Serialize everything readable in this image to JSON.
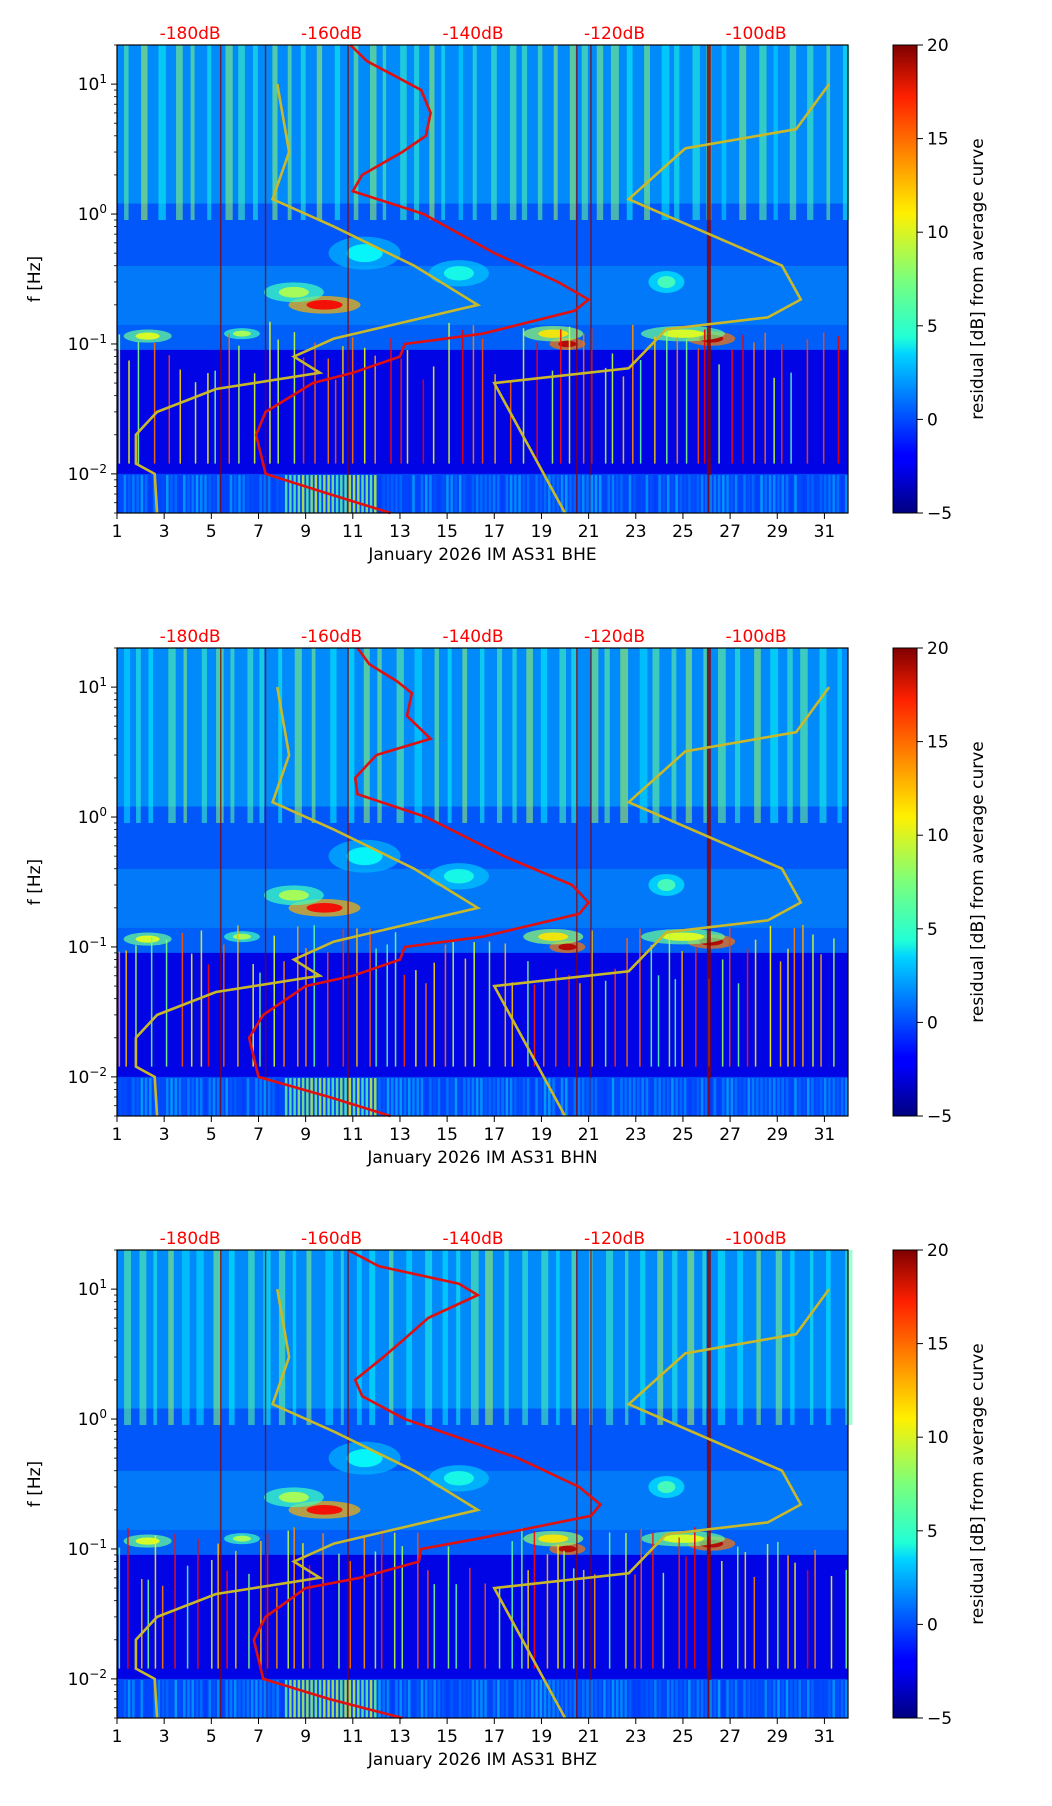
{
  "figure": {
    "month": "January 2026",
    "network": "IM",
    "station": "AS31"
  },
  "chart_data": [
    {
      "type": "heatmap",
      "channel": "BHE",
      "xlabel": "January 2026 IM AS31  BHE",
      "ylabel": "f [Hz]",
      "x_ticks": [
        "1",
        "3",
        "5",
        "7",
        "9",
        "11",
        "13",
        "15",
        "17",
        "19",
        "21",
        "23",
        "25",
        "27",
        "29",
        "31"
      ],
      "xlim": [
        1,
        32
      ],
      "y_ticks": [
        "10^-2",
        "10^-1",
        "10^0",
        "10^1"
      ],
      "ylim": [
        0.005,
        20
      ],
      "top_db_labels": [
        "-180dB",
        "-160dB",
        "-140dB",
        "-120dB",
        "-100dB"
      ],
      "top_db_positions_day": [
        4.1,
        10.1,
        16.1,
        22.1,
        28.1
      ],
      "colorbar": {
        "label": "residual [dB] from average curve",
        "ticks": [
          "-5",
          "0",
          "5",
          "10",
          "15",
          "20"
        ],
        "range": [
          -5,
          20
        ]
      },
      "red_curve": {
        "name": "average PSD",
        "freq_hz": [
          20,
          15,
          11,
          9,
          6,
          4,
          3,
          2,
          1.5,
          1,
          0.5,
          0.3,
          0.22,
          0.18,
          0.12,
          0.1,
          0.08,
          0.06,
          0.05,
          0.03,
          0.02,
          0.01,
          0.007,
          0.005
        ],
        "day": [
          10.9,
          11.6,
          13.0,
          13.9,
          14.3,
          14.1,
          13.1,
          11.4,
          11.0,
          14.0,
          17.0,
          19.7,
          21.0,
          20.4,
          16.5,
          13.2,
          13.0,
          11.0,
          9.3,
          7.3,
          6.9,
          7.3,
          10.0,
          12.6
        ]
      },
      "yellow_curves": [
        {
          "freq_hz": [
            10,
            3,
            1.3,
            0.8,
            0.4,
            0.2,
            0.11,
            0.08,
            0.06,
            0.045,
            0.03,
            0.02,
            0.012,
            0.01,
            0.005
          ],
          "day": [
            7.8,
            8.3,
            7.6,
            10.2,
            13.6,
            16.3,
            10.2,
            8.5,
            9.6,
            5.2,
            2.7,
            1.8,
            1.8,
            2.6,
            2.7
          ]
        },
        {
          "freq_hz": [
            10,
            4.5,
            3.2,
            1.3,
            0.4,
            0.22,
            0.16,
            0.13,
            0.065,
            0.05,
            0.005
          ],
          "day": [
            31.2,
            29.8,
            25.1,
            22.7,
            29.2,
            30.0,
            28.6,
            24.3,
            22.7,
            17.0,
            20.0
          ]
        }
      ]
    },
    {
      "type": "heatmap",
      "channel": "BHN",
      "xlabel": "January 2026 IM AS31  BHN",
      "ylabel": "f [Hz]",
      "x_ticks": [
        "1",
        "3",
        "5",
        "7",
        "9",
        "11",
        "13",
        "15",
        "17",
        "19",
        "21",
        "23",
        "25",
        "27",
        "29",
        "31"
      ],
      "xlim": [
        1,
        32
      ],
      "y_ticks": [
        "10^-2",
        "10^-1",
        "10^0",
        "10^1"
      ],
      "ylim": [
        0.005,
        20
      ],
      "top_db_labels": [
        "-180dB",
        "-160dB",
        "-140dB",
        "-120dB",
        "-100dB"
      ],
      "top_db_positions_day": [
        4.1,
        10.1,
        16.1,
        22.1,
        28.1
      ],
      "colorbar": {
        "label": "residual [dB] from average curve",
        "ticks": [
          "-5",
          "0",
          "5",
          "10",
          "15",
          "20"
        ],
        "range": [
          -5,
          20
        ]
      },
      "red_curve": {
        "name": "average PSD",
        "freq_hz": [
          20,
          15,
          11,
          9,
          6,
          4,
          3,
          2,
          1.5,
          1,
          0.5,
          0.3,
          0.22,
          0.18,
          0.12,
          0.1,
          0.08,
          0.06,
          0.05,
          0.03,
          0.02,
          0.01,
          0.007,
          0.005
        ],
        "day": [
          11.2,
          11.7,
          12.9,
          13.5,
          13.3,
          14.3,
          12.0,
          11.1,
          11.2,
          14.1,
          17.4,
          20.3,
          21.0,
          20.6,
          16.5,
          13.2,
          13.0,
          11.0,
          9.0,
          7.2,
          6.6,
          7.0,
          10.0,
          12.6
        ]
      },
      "yellow_curves": [
        {
          "freq_hz": [
            10,
            3,
            1.3,
            0.8,
            0.4,
            0.2,
            0.11,
            0.08,
            0.06,
            0.045,
            0.03,
            0.02,
            0.012,
            0.01,
            0.005
          ],
          "day": [
            7.8,
            8.3,
            7.6,
            10.2,
            13.6,
            16.3,
            10.2,
            8.5,
            9.6,
            5.2,
            2.7,
            1.8,
            1.8,
            2.6,
            2.7
          ]
        },
        {
          "freq_hz": [
            10,
            4.5,
            3.2,
            1.3,
            0.4,
            0.22,
            0.16,
            0.13,
            0.065,
            0.05,
            0.005
          ],
          "day": [
            31.2,
            29.8,
            25.1,
            22.7,
            29.2,
            30.0,
            28.6,
            24.3,
            22.7,
            17.0,
            20.0
          ]
        }
      ]
    },
    {
      "type": "heatmap",
      "channel": "BHZ",
      "xlabel": "January 2026 IM AS31  BHZ",
      "ylabel": "f [Hz]",
      "x_ticks": [
        "1",
        "3",
        "5",
        "7",
        "9",
        "11",
        "13",
        "15",
        "17",
        "19",
        "21",
        "23",
        "25",
        "27",
        "29",
        "31"
      ],
      "xlim": [
        1,
        32
      ],
      "y_ticks": [
        "10^-2",
        "10^-1",
        "10^0",
        "10^1"
      ],
      "ylim": [
        0.005,
        20
      ],
      "top_db_labels": [
        "-180dB",
        "-160dB",
        "-140dB",
        "-120dB",
        "-100dB"
      ],
      "top_db_positions_day": [
        4.1,
        10.1,
        16.1,
        22.1,
        28.1
      ],
      "colorbar": {
        "label": "residual [dB] from average curve",
        "ticks": [
          "-5",
          "0",
          "5",
          "10",
          "15",
          "20"
        ],
        "range": [
          -5,
          20
        ]
      },
      "red_curve": {
        "name": "average PSD",
        "freq_hz": [
          20,
          15,
          11,
          9,
          6,
          4,
          3,
          2,
          1.5,
          1,
          0.5,
          0.3,
          0.22,
          0.18,
          0.12,
          0.1,
          0.08,
          0.06,
          0.05,
          0.03,
          0.02,
          0.01,
          0.007,
          0.005
        ],
        "day": [
          10.8,
          12.1,
          15.5,
          16.3,
          14.2,
          13.1,
          12.3,
          11.1,
          11.4,
          13.2,
          18.0,
          20.6,
          21.5,
          21.1,
          16.3,
          13.9,
          13.8,
          11.3,
          9.0,
          7.3,
          6.8,
          7.2,
          10.0,
          13.1
        ]
      },
      "yellow_curves": [
        {
          "freq_hz": [
            10,
            3,
            1.3,
            0.8,
            0.4,
            0.2,
            0.11,
            0.08,
            0.06,
            0.045,
            0.03,
            0.02,
            0.012,
            0.01,
            0.005
          ],
          "day": [
            7.8,
            8.3,
            7.6,
            10.2,
            13.6,
            16.3,
            10.2,
            8.5,
            9.6,
            5.2,
            2.7,
            1.8,
            1.8,
            2.6,
            2.7
          ]
        },
        {
          "freq_hz": [
            10,
            4.5,
            3.2,
            1.3,
            0.4,
            0.22,
            0.16,
            0.13,
            0.065,
            0.05,
            0.005
          ],
          "day": [
            31.2,
            29.8,
            25.1,
            22.7,
            29.2,
            30.0,
            28.6,
            24.3,
            22.7,
            17.0,
            20.0
          ]
        }
      ]
    }
  ]
}
